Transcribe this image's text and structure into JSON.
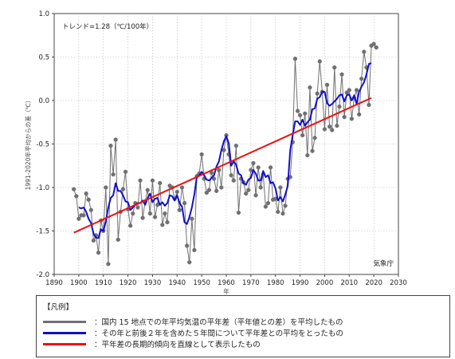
{
  "chart_data": {
    "type": "line",
    "title": "",
    "xlabel": "年",
    "ylabel": "1991-2020年平均からの差（℃）",
    "xlim": [
      1890,
      2030
    ],
    "ylim": [
      -2.0,
      1.0
    ],
    "xticks": [
      1890,
      1900,
      1910,
      1920,
      1930,
      1940,
      1950,
      1960,
      1970,
      1980,
      1990,
      2000,
      2010,
      2020,
      2030
    ],
    "yticks": [
      -2.0,
      -1.5,
      -1.0,
      -0.5,
      0.0,
      0.5,
      1.0
    ],
    "ytick_labels": [
      "-2.0",
      "-1.5",
      "-1.0",
      "-0.5",
      "0.0",
      "0.5",
      "1.0"
    ],
    "grid": true,
    "trend_label": "トレンド=1.28（℃/100年）",
    "source_label": "気象庁",
    "series": [
      {
        "name": "国内15地点での年平均気温の平年差（平年値との差）を平均したもの",
        "kind": "annual",
        "color": "#707070",
        "markers": true,
        "x": [
          1898,
          1899,
          1900,
          1901,
          1902,
          1903,
          1904,
          1905,
          1906,
          1907,
          1908,
          1909,
          1910,
          1911,
          1912,
          1913,
          1914,
          1915,
          1916,
          1917,
          1918,
          1919,
          1920,
          1921,
          1922,
          1923,
          1924,
          1925,
          1926,
          1927,
          1928,
          1929,
          1930,
          1931,
          1932,
          1933,
          1934,
          1935,
          1936,
          1937,
          1938,
          1939,
          1940,
          1941,
          1942,
          1943,
          1944,
          1945,
          1946,
          1947,
          1948,
          1949,
          1950,
          1951,
          1952,
          1953,
          1954,
          1955,
          1956,
          1957,
          1958,
          1959,
          1960,
          1961,
          1962,
          1963,
          1964,
          1965,
          1966,
          1967,
          1968,
          1969,
          1970,
          1971,
          1972,
          1973,
          1974,
          1975,
          1976,
          1977,
          1978,
          1979,
          1980,
          1981,
          1982,
          1983,
          1984,
          1985,
          1986,
          1987,
          1988,
          1989,
          1990,
          1991,
          1992,
          1993,
          1994,
          1995,
          1996,
          1997,
          1998,
          1999,
          2000,
          2001,
          2002,
          2003,
          2004,
          2005,
          2006,
          2007,
          2008,
          2009,
          2010,
          2011,
          2012,
          2013,
          2014,
          2015,
          2016,
          2017,
          2018,
          2019,
          2020,
          2021
        ],
        "y": [
          -1.02,
          -1.1,
          -1.36,
          -1.32,
          -1.32,
          -1.07,
          -1.14,
          -1.26,
          -1.61,
          -1.55,
          -1.75,
          -1.38,
          -1.5,
          -1.0,
          -1.88,
          -0.52,
          -0.85,
          -0.45,
          -1.6,
          -1.28,
          -1.02,
          -0.82,
          -1.25,
          -1.44,
          -1.3,
          -1.18,
          -1.23,
          -0.92,
          -1.35,
          -1.16,
          -1.03,
          -1.3,
          -0.92,
          -1.34,
          -1.2,
          -0.95,
          -1.43,
          -1.3,
          -1.4,
          -0.98,
          -1.0,
          -1.13,
          -1.05,
          -1.26,
          -1.0,
          -1.18,
          -1.67,
          -1.86,
          -1.36,
          -1.72,
          -0.87,
          -0.84,
          -0.62,
          -0.9,
          -1.06,
          -1.03,
          -0.83,
          -0.9,
          -1.04,
          -0.8,
          -1.0,
          -0.57,
          -0.4,
          -0.62,
          -0.86,
          -0.92,
          -0.52,
          -1.29,
          -0.9,
          -0.94,
          -1.07,
          -1.03,
          -0.8,
          -0.72,
          -1.09,
          -0.77,
          -1.0,
          -0.85,
          -1.22,
          -1.18,
          -0.77,
          -1.14,
          -1.13,
          -1.28,
          -1.0,
          -1.3,
          -1.21,
          -0.9,
          -0.88,
          -0.48,
          0.48,
          -0.12,
          -0.17,
          -0.4,
          -0.15,
          -0.63,
          0.15,
          -0.58,
          -0.43,
          0.08,
          0.45,
          0.1,
          -0.33,
          0.18,
          -0.3,
          -0.34,
          0.38,
          -0.29,
          -0.07,
          0.3,
          -0.19,
          0.09,
          0.12,
          -0.21,
          0.03,
          0.12,
          -0.16,
          0.25,
          0.56,
          0.38,
          -0.05,
          0.63,
          0.65,
          0.61
        ]
      },
      {
        "name": "その年と前後2年を含めた5年間について平年差との平均をとったもの",
        "kind": "five_year_mean",
        "color": "#1010cc",
        "markers": false,
        "x": [
          1900,
          1901,
          1902,
          1903,
          1904,
          1905,
          1906,
          1907,
          1908,
          1909,
          1910,
          1911,
          1912,
          1913,
          1914,
          1915,
          1916,
          1917,
          1918,
          1919,
          1920,
          1921,
          1922,
          1923,
          1924,
          1925,
          1926,
          1927,
          1928,
          1929,
          1930,
          1931,
          1932,
          1933,
          1934,
          1935,
          1936,
          1937,
          1938,
          1939,
          1940,
          1941,
          1942,
          1943,
          1944,
          1945,
          1946,
          1947,
          1948,
          1949,
          1950,
          1951,
          1952,
          1953,
          1954,
          1955,
          1956,
          1957,
          1958,
          1959,
          1960,
          1961,
          1962,
          1963,
          1964,
          1965,
          1966,
          1967,
          1968,
          1969,
          1970,
          1971,
          1972,
          1973,
          1974,
          1975,
          1976,
          1977,
          1978,
          1979,
          1980,
          1981,
          1982,
          1983,
          1984,
          1985,
          1986,
          1987,
          1988,
          1989,
          1990,
          1991,
          1992,
          1993,
          1994,
          1995,
          1996,
          1997,
          1998,
          1999,
          2000,
          2001,
          2002,
          2003,
          2004,
          2005,
          2006,
          2007,
          2008,
          2009,
          2010,
          2011,
          2012,
          2013,
          2014,
          2015,
          2016,
          2017,
          2018,
          2019
        ],
        "y": [
          -1.23,
          -1.24,
          -1.23,
          -1.28,
          -1.36,
          -1.41,
          -1.53,
          -1.58,
          -1.58,
          -1.48,
          -1.5,
          -1.39,
          -1.23,
          -1.12,
          -1.09,
          -0.95,
          -1.04,
          -1.04,
          -1.09,
          -1.16,
          -1.17,
          -1.26,
          -1.23,
          -1.2,
          -1.18,
          -1.18,
          -1.15,
          -1.2,
          -1.12,
          -1.07,
          -1.17,
          -1.13,
          -1.12,
          -1.2,
          -1.17,
          -1.21,
          -1.18,
          -1.09,
          -1.1,
          -1.15,
          -1.09,
          -1.18,
          -1.22,
          -1.4,
          -1.42,
          -1.34,
          -1.23,
          -1.08,
          -0.88,
          -0.86,
          -0.82,
          -0.86,
          -0.91,
          -0.92,
          -0.89,
          -0.86,
          -0.76,
          -0.7,
          -0.57,
          -0.47,
          -0.41,
          -0.49,
          -0.75,
          -0.7,
          -0.74,
          -0.84,
          -0.86,
          -0.95,
          -0.97,
          -0.91,
          -0.89,
          -0.8,
          -0.84,
          -0.92,
          -0.92,
          -0.81,
          -0.88,
          -0.86,
          -0.95,
          -0.94,
          -1.01,
          -1.15,
          -1.11,
          -1.16,
          -1.08,
          -0.98,
          -0.57,
          -0.4,
          -0.24,
          -0.24,
          -0.28,
          -0.22,
          -0.29,
          -0.25,
          -0.22,
          -0.1,
          -0.09,
          0.02,
          0.04,
          0.1,
          0.1,
          -0.03,
          -0.06,
          -0.04,
          -0.01,
          0.02,
          0.06,
          0.07,
          -0.01,
          0.06,
          0.07,
          0.0,
          0.06,
          -0.04,
          0.1,
          0.16,
          0.21,
          0.3,
          0.42,
          0.43
        ]
      },
      {
        "name": "平年差の長期的傾向を直線として表示したもの",
        "kind": "trend",
        "color": "#ee1111",
        "markers": false,
        "x": [
          1898,
          2019
        ],
        "y": [
          -1.52,
          0.03
        ]
      }
    ]
  },
  "legend": {
    "title": "【凡例】",
    "items": [
      {
        "text": "：国内 15 地点での年平均気温の平年差（平年値との差）を平均したもの",
        "color": "#707070"
      },
      {
        "text": "：その年と前後２年を含めた５年間について平年差との平均をとったもの",
        "color": "#1010cc"
      },
      {
        "text": "：平年差の長期的傾向を直線として表示したもの",
        "color": "#ee1111"
      }
    ]
  }
}
